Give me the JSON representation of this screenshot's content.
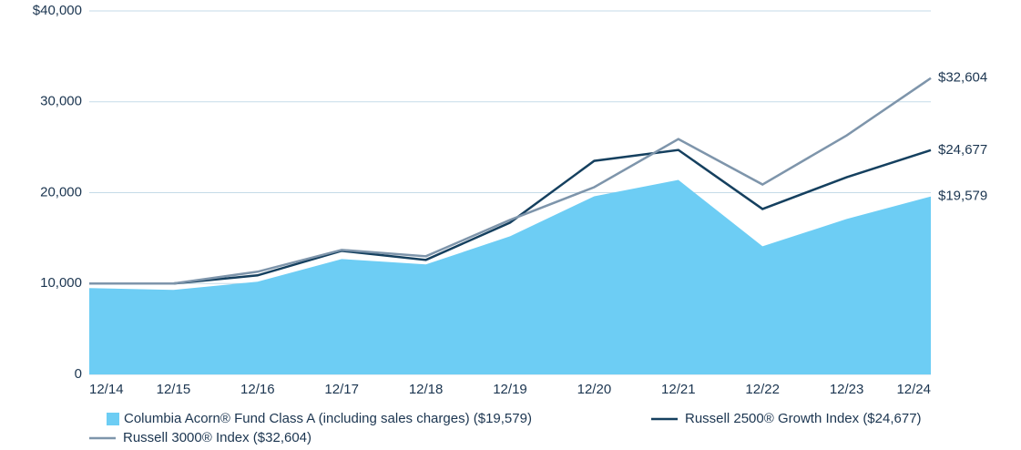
{
  "chart_data": {
    "type": "area_line",
    "categories": [
      "12/14",
      "12/15",
      "12/16",
      "12/17",
      "12/18",
      "12/19",
      "12/20",
      "12/21",
      "12/22",
      "12/23",
      "12/24"
    ],
    "ylim": [
      0,
      40000
    ],
    "yticks": [
      0,
      {
        "value": 10000,
        "label": "10,000"
      },
      {
        "value": 20000,
        "label": "20,000"
      },
      {
        "value": 30000,
        "label": "30,000"
      },
      {
        "value": 40000,
        "label": "$40,000"
      }
    ],
    "grid": true,
    "series": [
      {
        "name": "Columbia Acorn® Fund Class A (including sales charges) ($19,579)",
        "color": "#6dcdf4",
        "style": "area",
        "values": [
          9500,
          9300,
          10200,
          12700,
          12100,
          15200,
          19600,
          21400,
          14100,
          17100,
          19579
        ],
        "value_labels": [
          null,
          null,
          null,
          null,
          null,
          null,
          null,
          null,
          null,
          null,
          "$19,579"
        ]
      },
      {
        "name": "Russell 2500® Growth Index ($24,677)",
        "color": "#15405f",
        "style": "line",
        "values": [
          10000,
          10000,
          10900,
          13600,
          12600,
          16700,
          23500,
          24700,
          18200,
          21700,
          24677
        ],
        "value_labels": [
          null,
          null,
          null,
          null,
          null,
          null,
          null,
          null,
          null,
          null,
          "$24,677"
        ]
      },
      {
        "name": "Russell 3000® Index ($32,604)",
        "color": "#7e95ab",
        "style": "line",
        "values": [
          10000,
          10000,
          11300,
          13700,
          13000,
          17000,
          20600,
          25900,
          20900,
          26300,
          32604
        ],
        "value_labels": [
          null,
          null,
          null,
          null,
          null,
          null,
          null,
          null,
          null,
          null,
          "$32,604"
        ]
      }
    ]
  }
}
